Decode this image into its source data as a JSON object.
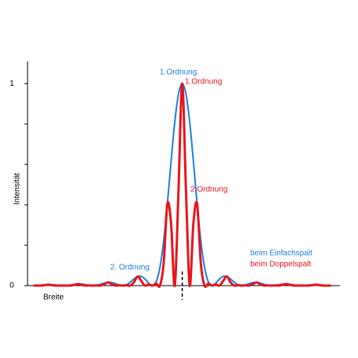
{
  "chart_data": {
    "type": "line",
    "y_label": "Intensität",
    "x_label": "Breite",
    "x": [
      -5,
      -4.875,
      -4.75,
      -4.625,
      -4.5,
      -4.375,
      -4.25,
      -4.125,
      -4,
      -3.875,
      -3.75,
      -3.625,
      -3.5,
      -3.375,
      -3.25,
      -3.125,
      -3,
      -2.875,
      -2.75,
      -2.625,
      -2.5,
      -2.375,
      -2.25,
      -2.125,
      -2,
      -1.875,
      -1.75,
      -1.625,
      -1.5,
      -1.375,
      -1.25,
      -1.125,
      -1,
      -0.875,
      -0.75,
      -0.625,
      -0.5,
      -0.375,
      -0.25,
      -0.125,
      0,
      0.125,
      0.25,
      0.375,
      0.5,
      0.625,
      0.75,
      0.875,
      1,
      1.125,
      1.25,
      1.375,
      1.5,
      1.625,
      1.75,
      1.875,
      2,
      2.125,
      2.25,
      2.375,
      2.5,
      2.625,
      2.75,
      2.875,
      3,
      3.125,
      3.25,
      3.375,
      3.5,
      3.625,
      3.75,
      3.875,
      4,
      4.125,
      4.25,
      4.375,
      4.5,
      4.625,
      4.75,
      4.875,
      5
    ],
    "series": [
      {
        "name": "beim Einfachspalt",
        "color": "#1e7fe0",
        "width": 2,
        "values": [
          0,
          0.0006,
          0.0022,
          0.004,
          0.005,
          0.0045,
          0.0028,
          0.0009,
          0,
          0.001,
          0.0036,
          0.0066,
          0.0083,
          0.0076,
          0.0048,
          0.0015,
          0,
          0.0018,
          0.0067,
          0.0125,
          0.0162,
          0.0153,
          0.01,
          0.0033,
          0,
          0.0042,
          0.0165,
          0.0328,
          0.045,
          0.0457,
          0.0324,
          0.0117,
          0,
          0.0194,
          0.0901,
          0.2214,
          0.405,
          0.615,
          0.8106,
          0.9497,
          1,
          0.9497,
          0.8106,
          0.615,
          0.405,
          0.2214,
          0.0901,
          0.0194,
          0,
          0.0117,
          0.0324,
          0.0457,
          0.045,
          0.0328,
          0.0165,
          0.0042,
          0,
          0.0033,
          0.01,
          0.0153,
          0.0162,
          0.0125,
          0.0067,
          0.0018,
          0,
          0.0015,
          0.0048,
          0.0076,
          0.0083,
          0.0066,
          0.0036,
          0.001,
          0,
          0.0009,
          0.0028,
          0.0045,
          0.005,
          0.004,
          0.0022,
          0.0006,
          0
        ]
      },
      {
        "name": "beim Doppelspalt",
        "color": "#e8141b",
        "width": 3,
        "values": [
          0,
          0.0003,
          0,
          0.002,
          0.005,
          0.0023,
          0,
          0.0005,
          0,
          0.0005,
          0,
          0.0033,
          0.0083,
          0.0038,
          0,
          0.0008,
          0,
          0.0009,
          0,
          0.0063,
          0.0162,
          0.0077,
          0,
          0.0016,
          0,
          0.0021,
          0,
          0.0164,
          0.045,
          0.0229,
          0,
          0.0059,
          0,
          0.0097,
          0,
          0.1107,
          0.405,
          0.3075,
          0,
          0.4749,
          1,
          0.4749,
          0,
          0.3075,
          0.405,
          0.1107,
          0,
          0.0097,
          0,
          0.0059,
          0,
          0.0229,
          0.045,
          0.0164,
          0,
          0.0021,
          0,
          0.0016,
          0,
          0.0077,
          0.0162,
          0.0063,
          0,
          0.0009,
          0,
          0.0008,
          0,
          0.0038,
          0.0083,
          0.0033,
          0,
          0.0005,
          0,
          0.0005,
          0,
          0.0023,
          0.005,
          0.002,
          0,
          0.0003,
          0
        ]
      }
    ],
    "xlim": [
      -5.2,
      5.3
    ],
    "ylim": [
      0,
      1.11
    ],
    "yticks": [
      0,
      1
    ],
    "yminorticks": [
      0.2,
      0.4,
      0.6,
      0.8
    ],
    "annotations": [
      {
        "text": "1.Ordnung",
        "color": "#1e7fe0"
      },
      {
        "text": "1.Ordnung",
        "color": "#e8141b"
      },
      {
        "text": "2.Ordnung",
        "color": "#e8141b"
      },
      {
        "text": "2. Ordnung",
        "color": "#1e7fe0"
      }
    ],
    "legend": "lower right"
  }
}
